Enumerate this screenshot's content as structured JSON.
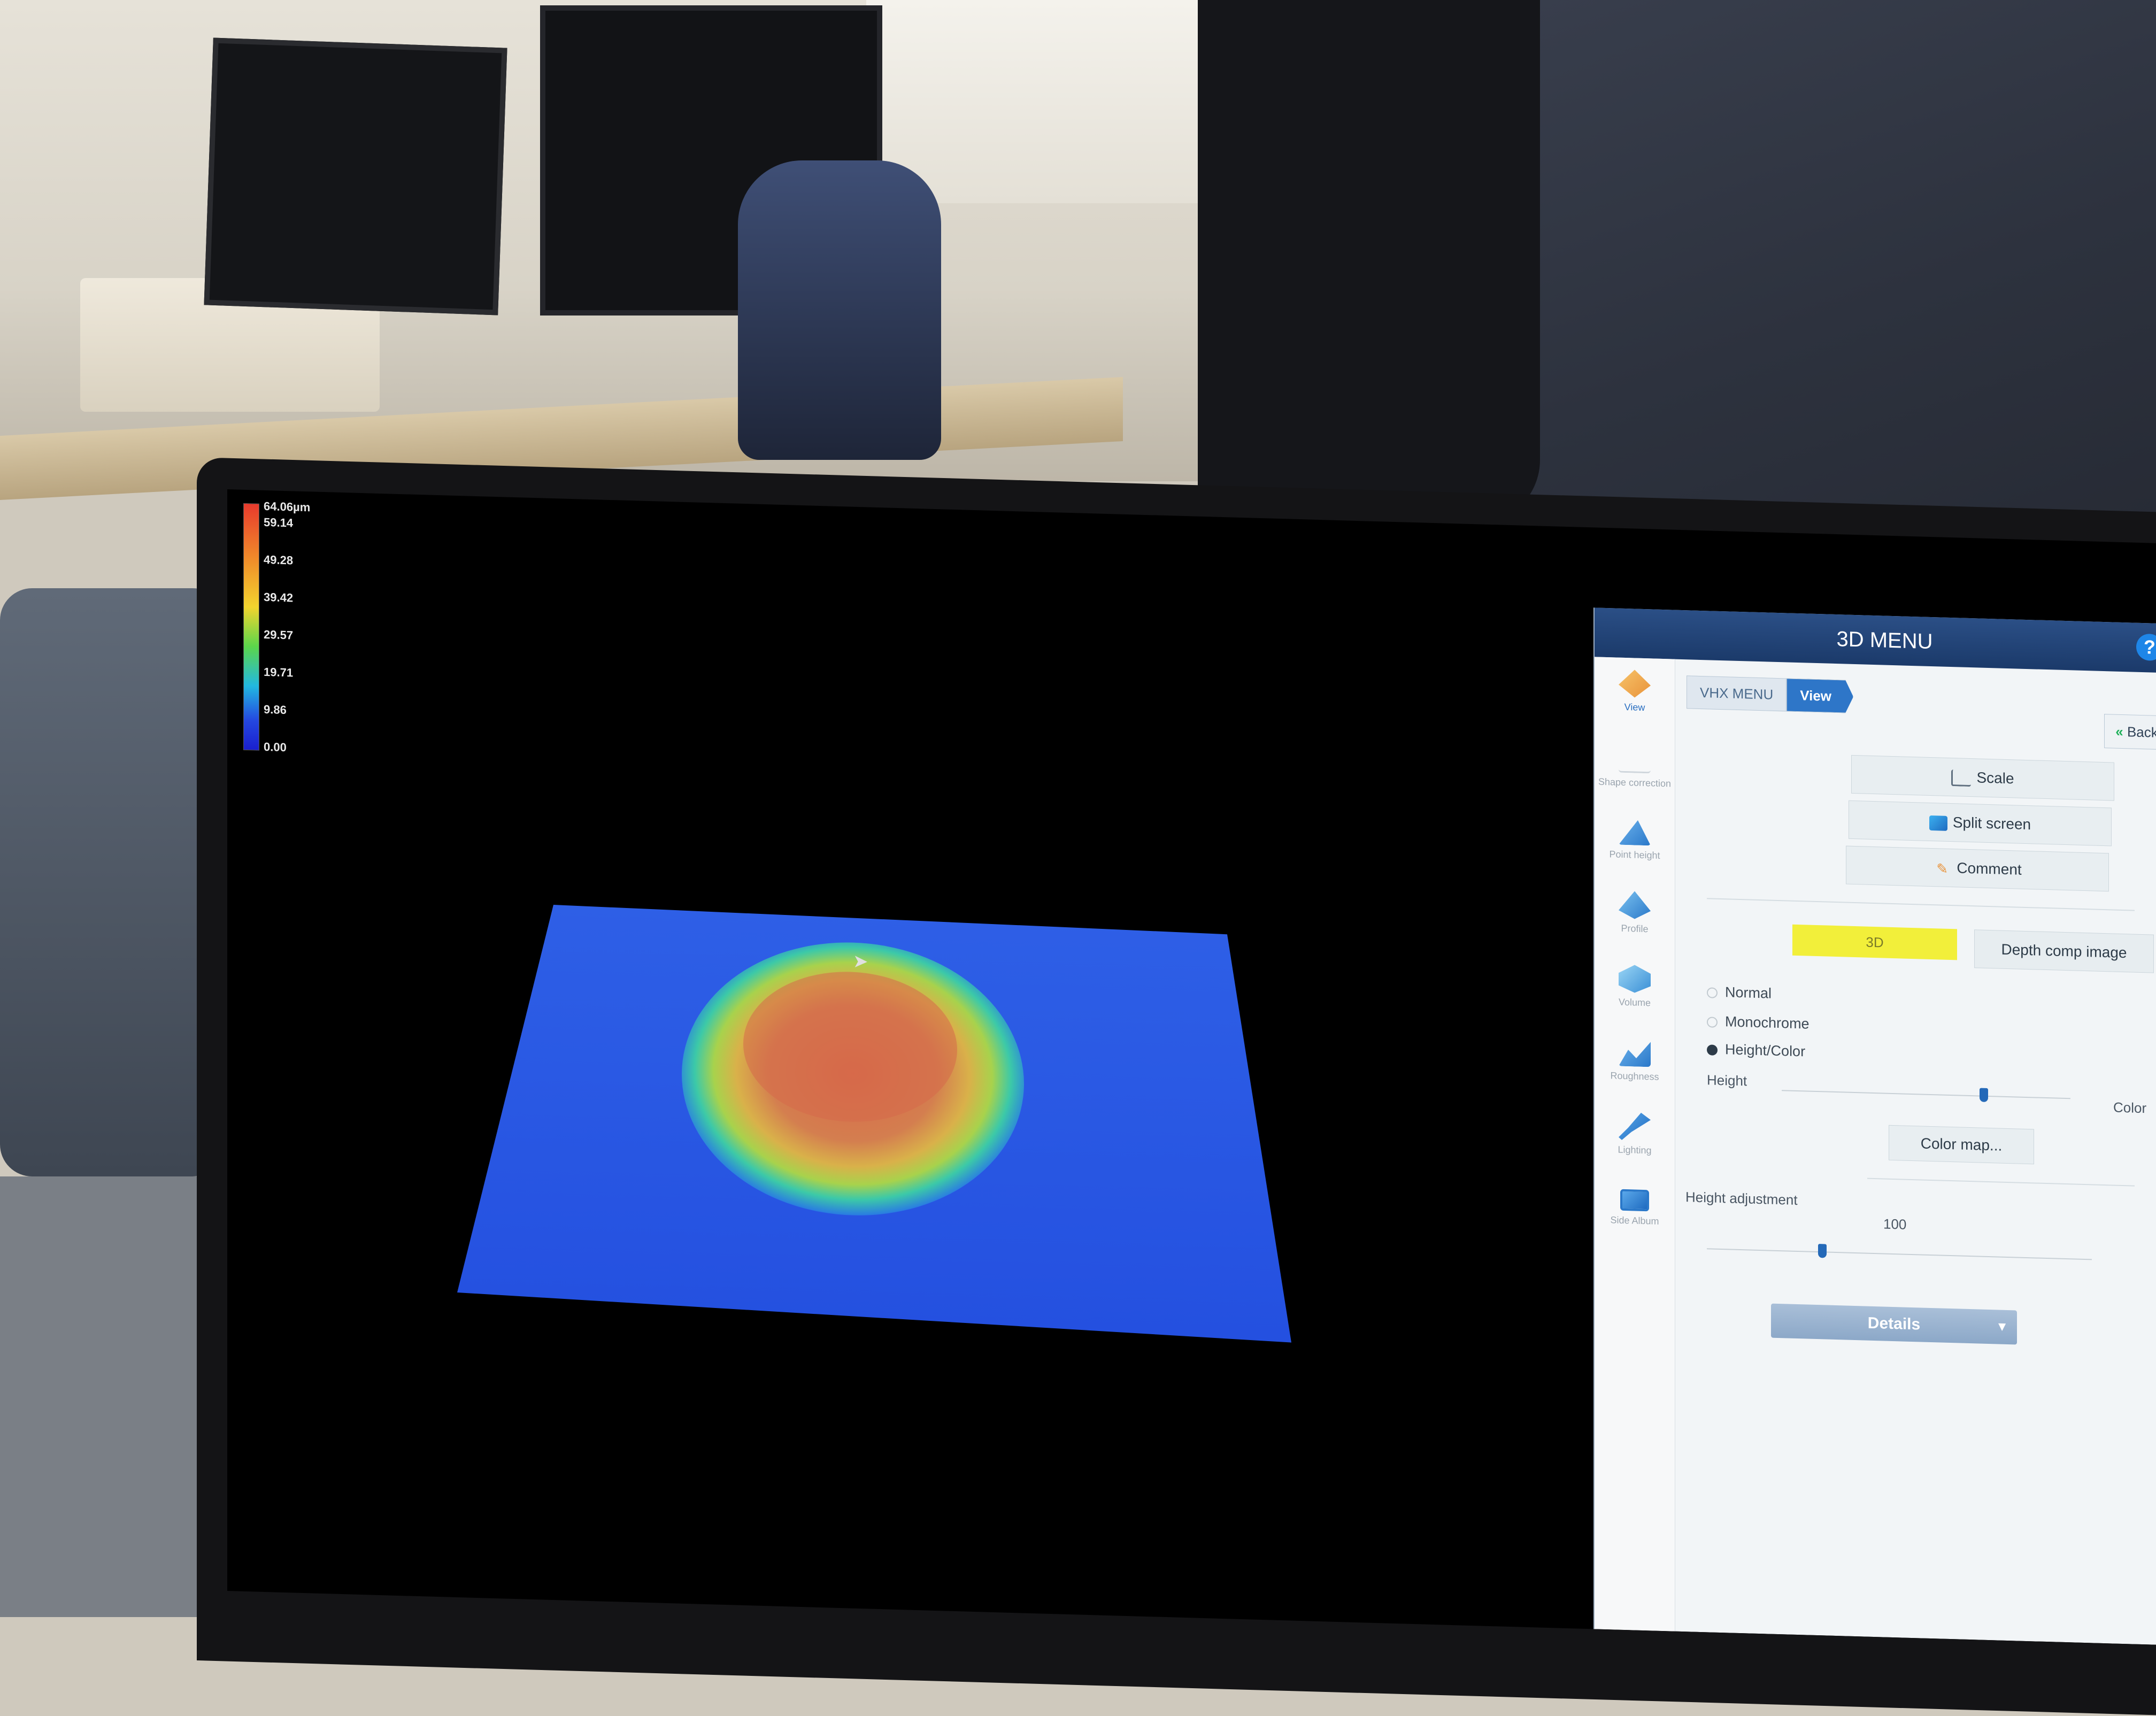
{
  "legend": {
    "labels": [
      "64.06µm",
      "59.14",
      "49.28",
      "39.42",
      "29.57",
      "19.71",
      "9.86",
      "0.00"
    ],
    "colors": [
      "#e83a2d",
      "#f08a2a",
      "#f2d42e",
      "#5bd64b",
      "#22b8e0",
      "#2448e0",
      "#1a1fcf"
    ]
  },
  "panel": {
    "title": "3D MENU",
    "help": "?",
    "breadcrumb": [
      "VHX MENU",
      "View"
    ],
    "back_label": "Back",
    "sidebar": [
      {
        "label": "View",
        "icon": "view-icon"
      },
      {
        "label": "Shape correction",
        "icon": "shape-correction-icon"
      },
      {
        "label": "Point height",
        "icon": "point-height-icon"
      },
      {
        "label": "Profile",
        "icon": "profile-icon"
      },
      {
        "label": "Volume",
        "icon": "volume-icon"
      },
      {
        "label": "Roughness",
        "icon": "roughness-icon"
      },
      {
        "label": "Lighting",
        "icon": "lighting-icon"
      },
      {
        "label": "Side Album",
        "icon": "side-album-icon"
      }
    ],
    "buttons": {
      "scale": "Scale",
      "split_screen": "Split screen",
      "comment": "Comment"
    },
    "tabs": {
      "three_d": "3D",
      "depth_comp": "Depth comp image"
    },
    "display_modes": [
      "Normal",
      "Monochrome",
      "Height/Color"
    ],
    "selected_mode": "Height/Color",
    "height_color": {
      "left_label": "Height",
      "right_label": "Color",
      "value": 0.7
    },
    "color_map_label": "Color map...",
    "height_adjustment": {
      "label": "Height adjustment",
      "value": "100",
      "slider": 0.3
    },
    "details_label": "Details"
  }
}
